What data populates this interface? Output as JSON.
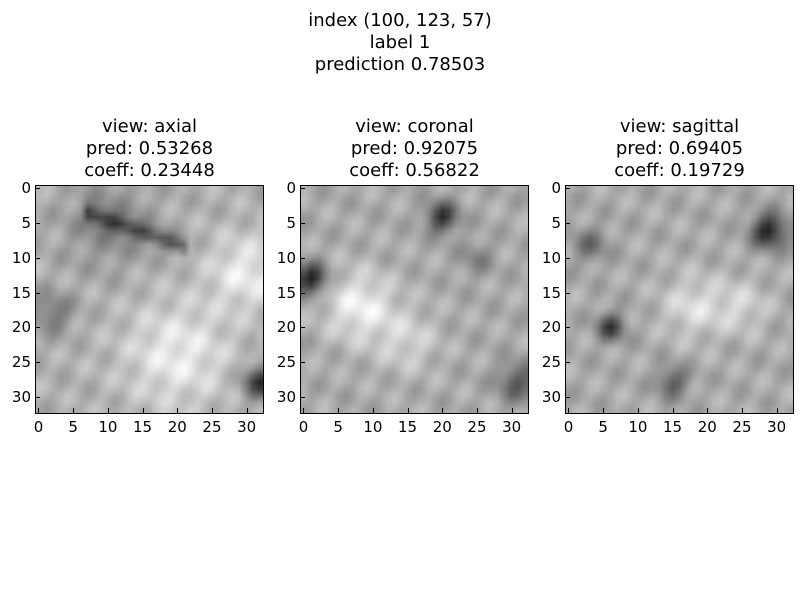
{
  "suptitle": {
    "line1": "index (100, 123, 57)",
    "line2": "label 1",
    "line3": "prediction 0.78503"
  },
  "panels": [
    {
      "view": "view: axial",
      "pred": "pred: 0.53268",
      "coeff": "coeff: 0.23448"
    },
    {
      "view": "view: coronal",
      "pred": "pred: 0.92075",
      "coeff": "coeff: 0.56822"
    },
    {
      "view": "view: sagittal",
      "pred": "pred: 0.69405",
      "coeff": "coeff: 0.19729"
    }
  ],
  "ticks": {
    "y": [
      "0",
      "5",
      "10",
      "15",
      "20",
      "25",
      "30"
    ],
    "x": [
      "0",
      "5",
      "10",
      "15",
      "20",
      "25",
      "30"
    ]
  },
  "image": {
    "colormap": "grayscale",
    "size": 33
  }
}
